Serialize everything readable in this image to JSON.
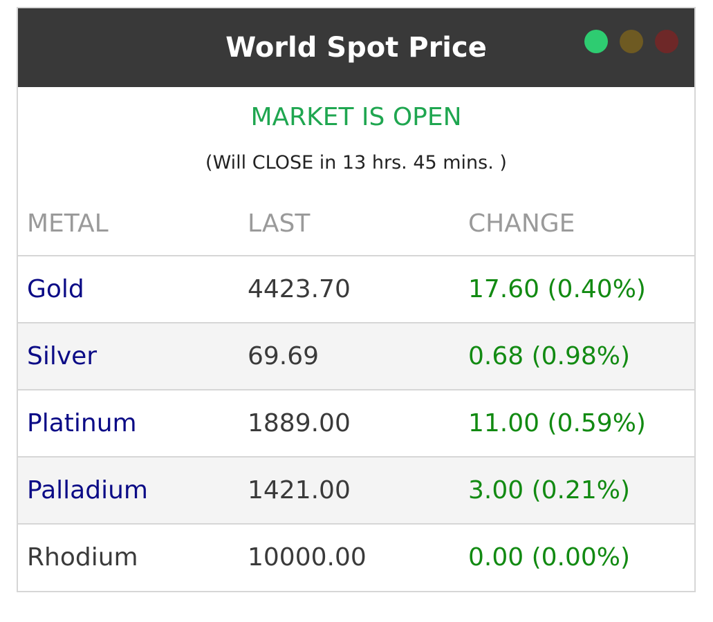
{
  "title": "World Spot Price",
  "window_controls": {
    "green": "#2ecc71",
    "amber": "#6e5a22",
    "red": "#6e2828"
  },
  "market": {
    "status": "MARKET IS OPEN",
    "status_color": "#1fa650",
    "note": "(Will CLOSE in 13 hrs. 45 mins. )"
  },
  "table": {
    "headers": [
      "METAL",
      "LAST",
      "CHANGE"
    ],
    "rows": [
      {
        "metal": "Gold",
        "last": "4423.70",
        "change": "17.60 (0.40%)",
        "link": true
      },
      {
        "metal": "Silver",
        "last": "69.69",
        "change": "0.68 (0.98%)",
        "link": true
      },
      {
        "metal": "Platinum",
        "last": "1889.00",
        "change": "11.00 (0.59%)",
        "link": true
      },
      {
        "metal": "Palladium",
        "last": "1421.00",
        "change": "3.00 (0.21%)",
        "link": true
      },
      {
        "metal": "Rhodium",
        "last": "10000.00",
        "change": "0.00 (0.00%)",
        "link": false
      }
    ]
  }
}
